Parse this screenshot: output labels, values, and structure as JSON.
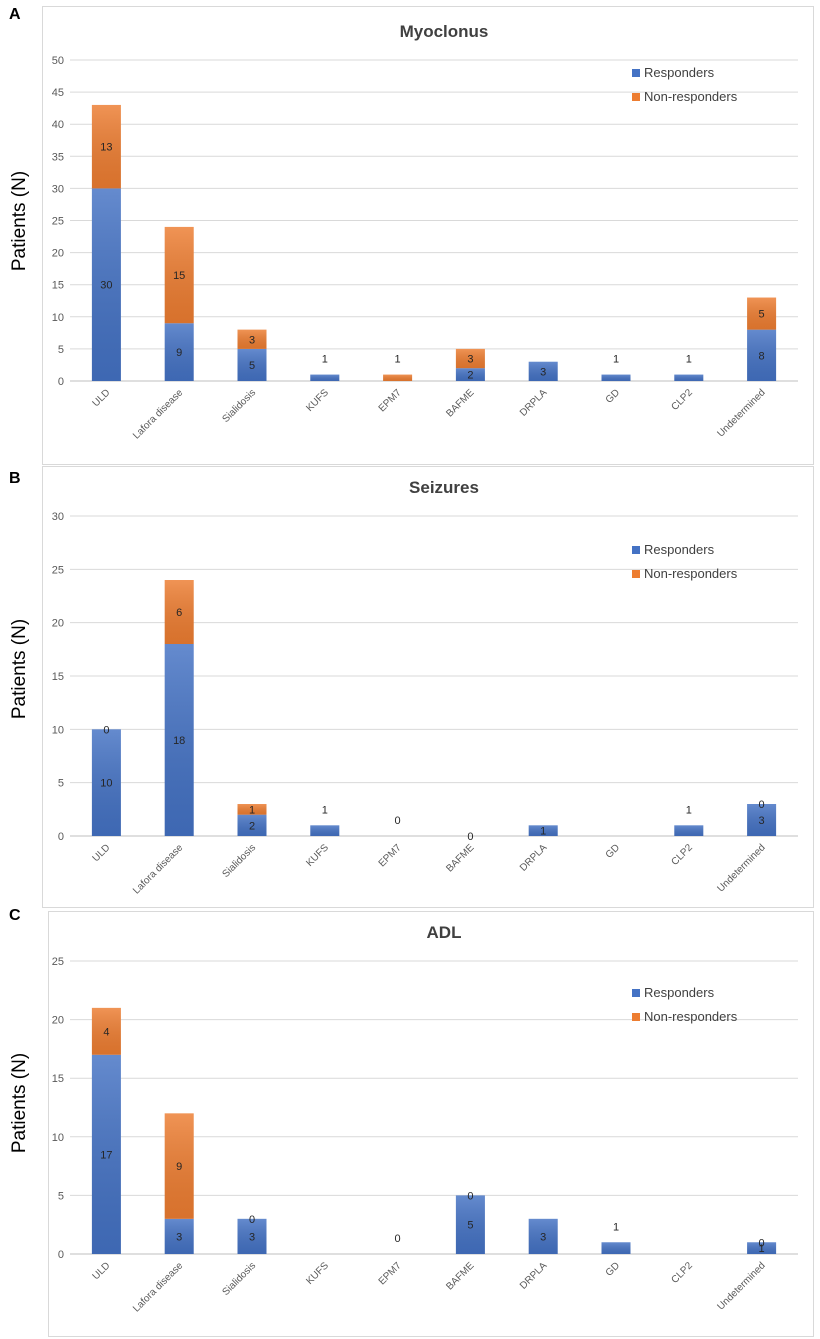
{
  "panels": [
    {
      "letter": "A",
      "ylabel": "Patients (N)"
    },
    {
      "letter": "B",
      "ylabel": "Patients (N)"
    },
    {
      "letter": "C",
      "ylabel": "Patients (N)"
    }
  ],
  "colors": {
    "responders": "#4472c4",
    "non_responders": "#ed7d31",
    "grid": "#d9d9d9",
    "axis_text": "#595959"
  },
  "chart_data": [
    {
      "type": "bar",
      "stacked": true,
      "title": "Myoclonus",
      "ylabel": "Patients (N)",
      "xlabel": "",
      "ylim": [
        0,
        50
      ],
      "yticks": [
        0,
        5,
        10,
        15,
        20,
        25,
        30,
        35,
        40,
        45,
        50
      ],
      "categories": [
        "ULD",
        "Lafora disease",
        "Sialidosis",
        "KUFS",
        "EPM7",
        "BAFME",
        "DRPLA",
        "GD",
        "CLP2",
        "Undetermined"
      ],
      "series": [
        {
          "name": "Responders",
          "values": [
            30,
            9,
            5,
            1,
            0,
            2,
            3,
            1,
            1,
            8
          ]
        },
        {
          "name": "Non-responders",
          "values": [
            13,
            15,
            3,
            0,
            1,
            3,
            0,
            0,
            0,
            5
          ]
        }
      ],
      "labels": [
        [
          {
            "s": 0,
            "text": "30"
          },
          {
            "s": 1,
            "text": "13"
          }
        ],
        [
          {
            "s": 0,
            "text": "9"
          },
          {
            "s": 1,
            "text": "15"
          }
        ],
        [
          {
            "s": 0,
            "text": "5"
          },
          {
            "s": 1,
            "text": "3"
          }
        ],
        [
          {
            "s": "top",
            "text": "1"
          }
        ],
        [
          {
            "s": "top",
            "text": "1"
          }
        ],
        [
          {
            "s": 0,
            "text": "2"
          },
          {
            "s": 1,
            "text": "3"
          }
        ],
        [
          {
            "s": 0,
            "text": "3"
          }
        ],
        [
          {
            "s": "top",
            "text": "1"
          }
        ],
        [
          {
            "s": "top",
            "text": "1"
          }
        ],
        [
          {
            "s": 0,
            "text": "8"
          },
          {
            "s": 1,
            "text": "5"
          }
        ]
      ],
      "legend": [
        "Responders",
        "Non-responders"
      ],
      "legend_position": "top-right"
    },
    {
      "type": "bar",
      "stacked": true,
      "title": "Seizures",
      "ylabel": "Patients (N)",
      "xlabel": "",
      "ylim": [
        0,
        30
      ],
      "yticks": [
        0,
        5,
        10,
        15,
        20,
        25,
        30
      ],
      "categories": [
        "ULD",
        "Lafora disease",
        "Sialidosis",
        "KUFS",
        "EPM7",
        "BAFME",
        "DRPLA",
        "GD",
        "CLP2",
        "Undetermined"
      ],
      "series": [
        {
          "name": "Responders",
          "values": [
            10,
            18,
            2,
            1,
            0,
            0,
            1,
            0,
            1,
            3
          ]
        },
        {
          "name": "Non-responders",
          "values": [
            0,
            6,
            1,
            0,
            0,
            0,
            0,
            0,
            0,
            0
          ]
        }
      ],
      "labels": [
        [
          {
            "s": 0,
            "text": "10"
          },
          {
            "s": "top-in",
            "text": "0"
          }
        ],
        [
          {
            "s": 0,
            "text": "18"
          },
          {
            "s": 1,
            "text": "6"
          }
        ],
        [
          {
            "s": 0,
            "text": "2"
          },
          {
            "s": 1,
            "text": "1"
          }
        ],
        [
          {
            "s": "top",
            "text": "1"
          }
        ],
        [
          {
            "s": "top",
            "text": "0"
          }
        ],
        [
          {
            "s": "zero",
            "text": "0"
          }
        ],
        [
          {
            "s": 0,
            "text": "1"
          }
        ],
        [],
        [
          {
            "s": "top",
            "text": "1"
          }
        ],
        [
          {
            "s": 0,
            "text": "3"
          },
          {
            "s": "top-in",
            "text": "0"
          }
        ]
      ],
      "legend": [
        "Responders",
        "Non-responders"
      ],
      "legend_position": "top-right"
    },
    {
      "type": "bar",
      "stacked": true,
      "title": "ADL",
      "ylabel": "Patients (N)",
      "xlabel": "",
      "ylim": [
        0,
        25
      ],
      "yticks": [
        0,
        5,
        10,
        15,
        20,
        25
      ],
      "categories": [
        "ULD",
        "Lafora disease",
        "Sialidosis",
        "KUFS",
        "EPM7",
        "BAFME",
        "DRPLA",
        "GD",
        "CLP2",
        "Undetermined"
      ],
      "series": [
        {
          "name": "Responders",
          "values": [
            17,
            3,
            3,
            0,
            0,
            5,
            3,
            1,
            0,
            1
          ]
        },
        {
          "name": "Non-responders",
          "values": [
            4,
            9,
            0,
            0,
            0,
            0,
            0,
            0,
            0,
            0
          ]
        }
      ],
      "labels": [
        [
          {
            "s": 0,
            "text": "17"
          },
          {
            "s": 1,
            "text": "4"
          }
        ],
        [
          {
            "s": 0,
            "text": "3"
          },
          {
            "s": 1,
            "text": "9"
          }
        ],
        [
          {
            "s": 0,
            "text": "3"
          },
          {
            "s": "top-in",
            "text": "0"
          }
        ],
        [],
        [
          {
            "s": "top",
            "text": "0"
          }
        ],
        [
          {
            "s": 0,
            "text": "5"
          },
          {
            "s": "top-in",
            "text": "0"
          }
        ],
        [
          {
            "s": 0,
            "text": "3"
          }
        ],
        [
          {
            "s": "top",
            "text": "1"
          }
        ],
        [],
        [
          {
            "s": 0,
            "text": "1"
          },
          {
            "s": "top-in",
            "text": "0"
          }
        ]
      ],
      "legend": [
        "Responders",
        "Non-responders"
      ],
      "legend_position": "top-right"
    }
  ]
}
